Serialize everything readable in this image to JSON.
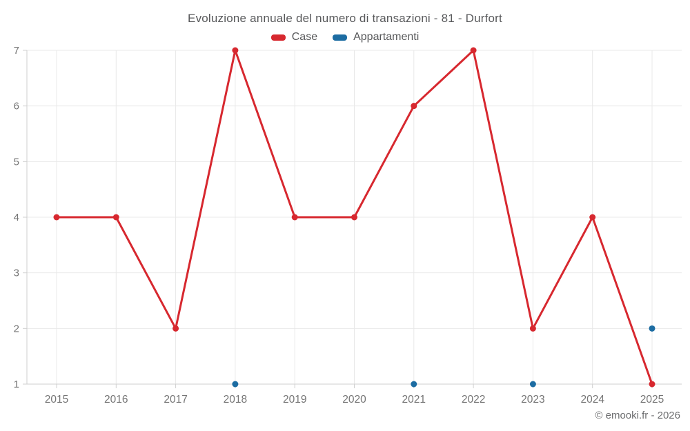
{
  "header": {
    "title": "Evoluzione annuale del numero di transazioni - 81 - Durfort"
  },
  "legend": {
    "items": [
      {
        "label": "Case",
        "color": "#d7282f"
      },
      {
        "label": "Appartamenti",
        "color": "#1c6ca2"
      }
    ]
  },
  "footer": {
    "credit": "© emooki.fr - 2026"
  },
  "chart_data": {
    "type": "line",
    "title": "Evoluzione annuale del numero di transazioni - 81 - Durfort",
    "categories": [
      "2015",
      "2016",
      "2017",
      "2018",
      "2019",
      "2020",
      "2021",
      "2022",
      "2023",
      "2024",
      "2025"
    ],
    "series": [
      {
        "name": "Case",
        "color": "#d7282f",
        "draw_line": true,
        "values": [
          4,
          4,
          2,
          7,
          4,
          4,
          6,
          7,
          2,
          4,
          1
        ]
      },
      {
        "name": "Appartamenti",
        "color": "#1c6ca2",
        "draw_line": false,
        "values": [
          null,
          null,
          null,
          1,
          null,
          null,
          1,
          null,
          1,
          null,
          2
        ]
      }
    ],
    "xlabel": "",
    "ylabel": "",
    "ylim": [
      1,
      7
    ],
    "yticks": [
      1,
      2,
      3,
      4,
      5,
      6,
      7
    ],
    "grid": true,
    "legend_position": "top",
    "grid_color": "#e8e8e8",
    "axis_color": "#cfcfcf",
    "tick_label_color": "#757575"
  }
}
